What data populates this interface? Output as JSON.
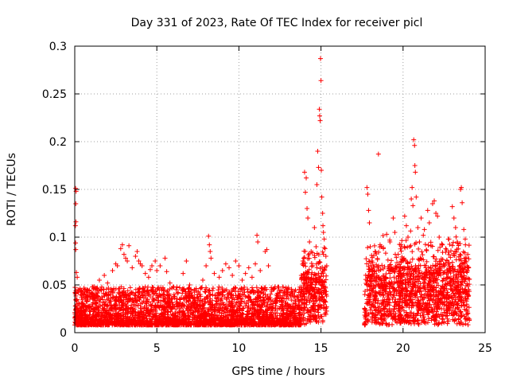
{
  "chart_data": {
    "type": "scatter",
    "title": "Day 331 of 2023, Rate Of TEC Index for receiver picl",
    "xlabel": "GPS time / hours",
    "ylabel": "ROTI / TECUs",
    "xlim": [
      0,
      25
    ],
    "ylim": [
      0,
      0.3
    ],
    "xticks": [
      0,
      5,
      10,
      15,
      20,
      25
    ],
    "xtick_labels": [
      "0",
      "5",
      "10",
      "15",
      "20",
      "25"
    ],
    "yticks": [
      0,
      0.05,
      0.1,
      0.15,
      0.2,
      0.25,
      0.3
    ],
    "ytick_labels": [
      "0",
      "0.05",
      "0.1",
      "0.15",
      "0.2",
      "0.25",
      "0.3"
    ],
    "grid": true,
    "marker": "+",
    "color": "#ff0000",
    "data_gap_hours": [
      15.5,
      17.5
    ],
    "series": [
      {
        "name": "ROTI",
        "points": [
          [
            0.05,
            0.151
          ],
          [
            0.08,
            0.148
          ],
          [
            0.06,
            0.135
          ],
          [
            0.07,
            0.116
          ],
          [
            0.04,
            0.112
          ],
          [
            0.05,
            0.094
          ],
          [
            0.06,
            0.087
          ],
          [
            0.1,
            0.063
          ],
          [
            0.15,
            0.058
          ],
          [
            0.2,
            0.045
          ],
          [
            0.3,
            0.03
          ],
          [
            0.5,
            0.028
          ],
          [
            0.8,
            0.035
          ],
          [
            1.0,
            0.042
          ],
          [
            1.2,
            0.048
          ],
          [
            1.5,
            0.055
          ],
          [
            1.8,
            0.06
          ],
          [
            2.0,
            0.052
          ],
          [
            2.3,
            0.065
          ],
          [
            2.5,
            0.072
          ],
          [
            2.6,
            0.07
          ],
          [
            2.8,
            0.088
          ],
          [
            2.9,
            0.092
          ],
          [
            3.0,
            0.082
          ],
          [
            3.1,
            0.078
          ],
          [
            3.2,
            0.075
          ],
          [
            3.3,
            0.091
          ],
          [
            3.5,
            0.068
          ],
          [
            3.7,
            0.08
          ],
          [
            3.8,
            0.085
          ],
          [
            3.9,
            0.075
          ],
          [
            4.0,
            0.072
          ],
          [
            4.1,
            0.07
          ],
          [
            4.3,
            0.062
          ],
          [
            4.5,
            0.058
          ],
          [
            4.6,
            0.066
          ],
          [
            4.7,
            0.07
          ],
          [
            4.9,
            0.075
          ],
          [
            5.0,
            0.065
          ],
          [
            5.2,
            0.07
          ],
          [
            5.5,
            0.078
          ],
          [
            5.6,
            0.064
          ],
          [
            5.8,
            0.052
          ],
          [
            6.0,
            0.048
          ],
          [
            6.3,
            0.042
          ],
          [
            6.6,
            0.062
          ],
          [
            6.8,
            0.075
          ],
          [
            7.0,
            0.05
          ],
          [
            7.3,
            0.045
          ],
          [
            7.6,
            0.04
          ],
          [
            7.8,
            0.055
          ],
          [
            8.0,
            0.07
          ],
          [
            8.15,
            0.101
          ],
          [
            8.2,
            0.092
          ],
          [
            8.25,
            0.085
          ],
          [
            8.3,
            0.078
          ],
          [
            8.5,
            0.062
          ],
          [
            8.8,
            0.058
          ],
          [
            9.0,
            0.065
          ],
          [
            9.2,
            0.072
          ],
          [
            9.4,
            0.068
          ],
          [
            9.6,
            0.06
          ],
          [
            9.8,
            0.075
          ],
          [
            10.0,
            0.07
          ],
          [
            10.2,
            0.055
          ],
          [
            10.4,
            0.062
          ],
          [
            10.6,
            0.068
          ],
          [
            10.8,
            0.058
          ],
          [
            11.0,
            0.072
          ],
          [
            11.1,
            0.102
          ],
          [
            11.15,
            0.095
          ],
          [
            11.3,
            0.065
          ],
          [
            11.6,
            0.085
          ],
          [
            11.7,
            0.087
          ],
          [
            11.8,
            0.07
          ],
          [
            12.0,
            0.045
          ],
          [
            12.2,
            0.048
          ],
          [
            12.4,
            0.04
          ],
          [
            12.6,
            0.032
          ],
          [
            12.8,
            0.028
          ],
          [
            13.0,
            0.025
          ],
          [
            13.3,
            0.03
          ],
          [
            13.6,
            0.035
          ],
          [
            13.8,
            0.06
          ],
          [
            13.9,
            0.075
          ],
          [
            14.0,
            0.168
          ],
          [
            14.05,
            0.147
          ],
          [
            14.1,
            0.162
          ],
          [
            14.15,
            0.13
          ],
          [
            14.2,
            0.12
          ],
          [
            14.3,
            0.095
          ],
          [
            14.4,
            0.085
          ],
          [
            14.5,
            0.07
          ],
          [
            14.6,
            0.11
          ],
          [
            14.7,
            0.09
          ],
          [
            14.75,
            0.155
          ],
          [
            14.8,
            0.19
          ],
          [
            14.85,
            0.173
          ],
          [
            14.9,
            0.234
          ],
          [
            14.92,
            0.227
          ],
          [
            14.95,
            0.222
          ],
          [
            14.97,
            0.287
          ],
          [
            15.0,
            0.264
          ],
          [
            15.02,
            0.17
          ],
          [
            15.05,
            0.142
          ],
          [
            15.1,
            0.125
          ],
          [
            15.12,
            0.112
          ],
          [
            15.15,
            0.105
          ],
          [
            15.2,
            0.098
          ],
          [
            15.25,
            0.088
          ],
          [
            15.3,
            0.08
          ],
          [
            15.35,
            0.07
          ],
          [
            17.8,
            0.152
          ],
          [
            17.85,
            0.145
          ],
          [
            17.9,
            0.128
          ],
          [
            17.95,
            0.115
          ],
          [
            18.0,
            0.09
          ],
          [
            18.1,
            0.075
          ],
          [
            18.3,
            0.085
          ],
          [
            18.5,
            0.187
          ],
          [
            18.6,
            0.092
          ],
          [
            18.8,
            0.088
          ],
          [
            19.0,
            0.103
          ],
          [
            19.2,
            0.095
          ],
          [
            19.4,
            0.12
          ],
          [
            19.5,
            0.105
          ],
          [
            19.7,
            0.082
          ],
          [
            19.9,
            0.09
          ],
          [
            20.1,
            0.122
          ],
          [
            20.2,
            0.112
          ],
          [
            20.3,
            0.1
          ],
          [
            20.4,
            0.09
          ],
          [
            20.5,
            0.14
          ],
          [
            20.55,
            0.152
          ],
          [
            20.6,
            0.133
          ],
          [
            20.65,
            0.202
          ],
          [
            20.7,
            0.196
          ],
          [
            20.72,
            0.175
          ],
          [
            20.75,
            0.168
          ],
          [
            20.8,
            0.142
          ],
          [
            20.9,
            0.11
          ],
          [
            21.0,
            0.095
          ],
          [
            21.1,
            0.12
          ],
          [
            21.3,
            0.108
          ],
          [
            21.5,
            0.128
          ],
          [
            21.6,
            0.115
          ],
          [
            21.8,
            0.135
          ],
          [
            21.9,
            0.138
          ],
          [
            22.0,
            0.125
          ],
          [
            22.1,
            0.122
          ],
          [
            22.2,
            0.1
          ],
          [
            22.4,
            0.092
          ],
          [
            22.6,
            0.088
          ],
          [
            22.8,
            0.098
          ],
          [
            23.0,
            0.132
          ],
          [
            23.1,
            0.12
          ],
          [
            23.2,
            0.11
          ],
          [
            23.3,
            0.095
          ],
          [
            23.5,
            0.15
          ],
          [
            23.55,
            0.152
          ],
          [
            23.6,
            0.136
          ],
          [
            23.7,
            0.108
          ],
          [
            23.8,
            0.092
          ],
          [
            23.9,
            0.07
          ],
          [
            24.0,
            0.045
          ]
        ]
      }
    ]
  }
}
